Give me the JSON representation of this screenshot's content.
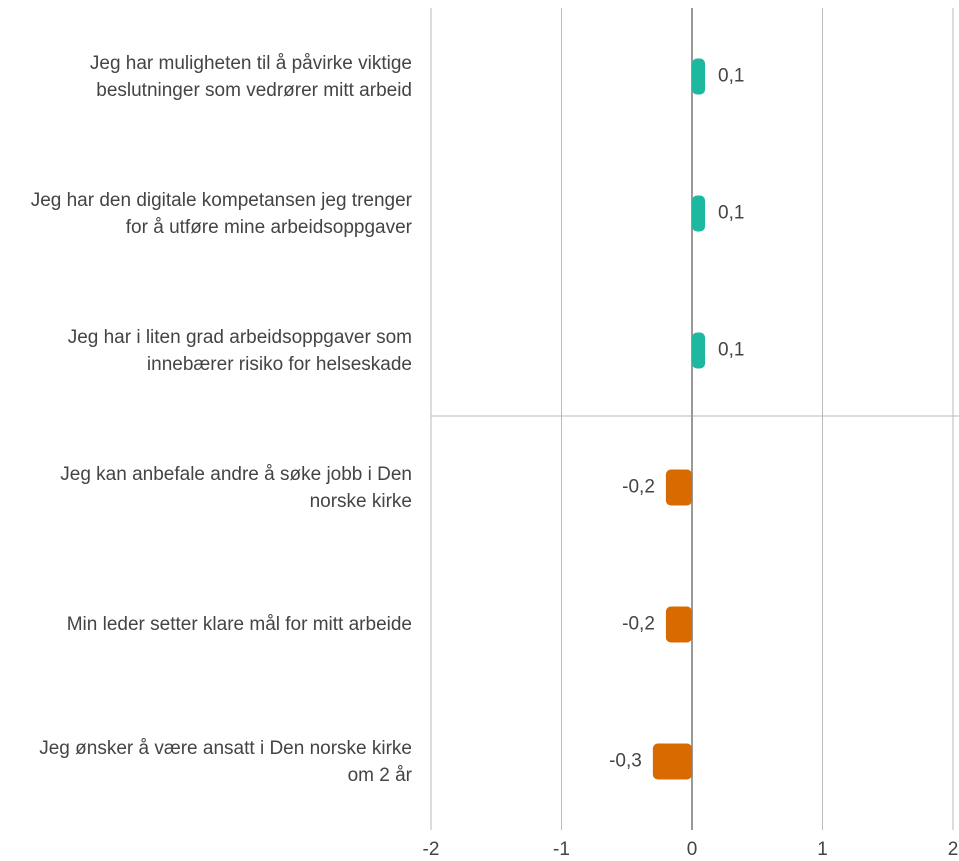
{
  "chart_data": {
    "type": "hbar",
    "categories": [
      "Jeg har muligheten til å påvirke viktige beslutninger som vedrører mitt arbeid",
      "Jeg har den digitale kompetansen jeg trenger for å utføre mine arbeidsoppgaver",
      "Jeg har i liten grad arbeidsoppgaver som innebærer risiko for helseskade",
      "Jeg kan anbefale andre å søke jobb i Den norske kirke",
      "Min leder setter klare mål for mitt arbeide",
      "Jeg ønsker å være ansatt i Den norske kirke om 2 år"
    ],
    "values": [
      0.1,
      0.1,
      0.1,
      -0.2,
      -0.2,
      -0.3
    ],
    "value_labels": [
      "0,1",
      "0,1",
      "0,1",
      "-0,2",
      "-0,2",
      "-0,3"
    ],
    "colors": [
      "#1cb8a0",
      "#1cb8a0",
      "#1cb8a0",
      "#d96a00",
      "#d96a00",
      "#d96a00"
    ],
    "xlim": [
      -2,
      2
    ],
    "xticks": [
      -2,
      -1,
      0,
      1,
      2
    ],
    "grid": true
  }
}
